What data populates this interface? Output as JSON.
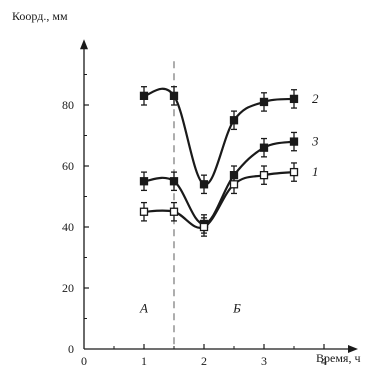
{
  "chart_data": {
    "type": "line",
    "xlabel": "Время, ч",
    "ylabel": "Коорд., мм",
    "xlim": [
      0,
      4.5
    ],
    "ylim": [
      0,
      95
    ],
    "x_ticks": [
      0,
      1,
      2,
      3,
      4
    ],
    "y_ticks": [
      0,
      20,
      40,
      60,
      80
    ],
    "grid": false,
    "divider_x": 1.5,
    "regions": [
      {
        "label": "А",
        "x": 1.0,
        "y": 12
      },
      {
        "label": "Б",
        "x": 2.55,
        "y": 12
      }
    ],
    "series": [
      {
        "name": "2",
        "marker": "filled",
        "x": [
          1,
          1.5,
          2,
          2.5,
          3,
          3.5
        ],
        "y": [
          83,
          83,
          54,
          75,
          81,
          82
        ],
        "err": [
          3,
          3,
          3,
          3,
          3,
          3
        ]
      },
      {
        "name": "3",
        "marker": "filled",
        "x": [
          1,
          1.5,
          2,
          2.5,
          3,
          3.5
        ],
        "y": [
          55,
          55,
          41,
          57,
          66,
          68
        ],
        "err": [
          3,
          3,
          3,
          3,
          3,
          3
        ]
      },
      {
        "name": "1",
        "marker": "open",
        "x": [
          1,
          1.5,
          2,
          2.5,
          3,
          3.5
        ],
        "y": [
          45,
          45,
          40,
          54,
          57,
          58
        ],
        "err": [
          3,
          3,
          3,
          3,
          3,
          3
        ]
      }
    ]
  }
}
